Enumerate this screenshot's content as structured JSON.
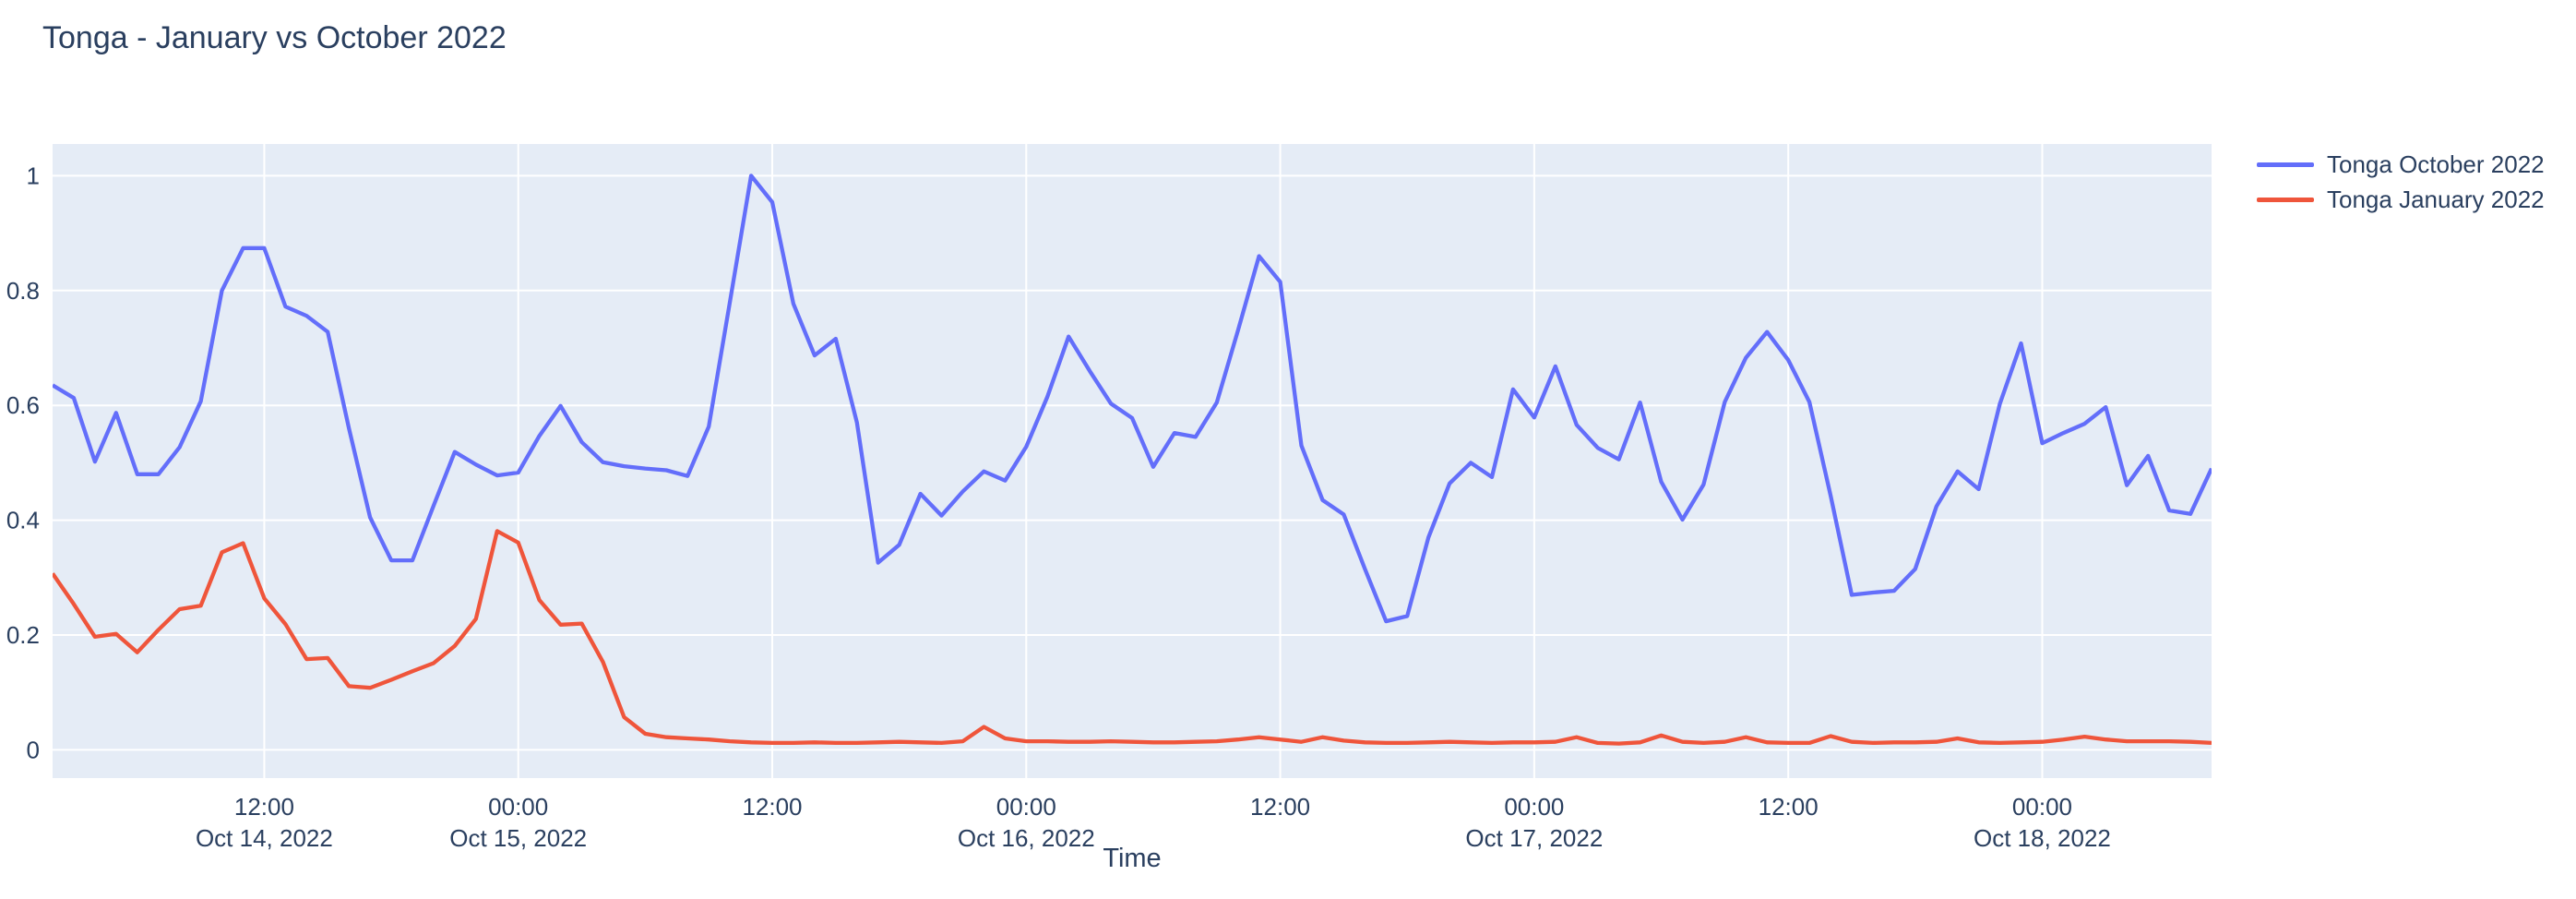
{
  "title": {
    "text": "Tonga - January vs October 2022",
    "color": "#2a3f5f"
  },
  "legend": {
    "items": [
      {
        "label": "Tonga October 2022",
        "color": "#636efa"
      },
      {
        "label": "Tonga January 2022",
        "color": "#ef553b"
      }
    ]
  },
  "chart_data": {
    "type": "line",
    "title": "Tonga - January vs October 2022",
    "xlabel": "Time",
    "ylabel": "",
    "plot_bgcolor": "#e5ecf6",
    "grid_color": "#ffffff",
    "text_color": "#2a3f5f",
    "legend_position": "top-right-outside",
    "x_axis": {
      "label": "Time",
      "start": "2022-10-14 02:00",
      "interval_hours": 1,
      "points": 103,
      "ticks": [
        {
          "hour_offset": 10,
          "line1": "12:00",
          "line2": "Oct 14, 2022"
        },
        {
          "hour_offset": 22,
          "line1": "00:00",
          "line2": "Oct 15, 2022"
        },
        {
          "hour_offset": 34,
          "line1": "12:00",
          "line2": ""
        },
        {
          "hour_offset": 46,
          "line1": "00:00",
          "line2": "Oct 16, 2022"
        },
        {
          "hour_offset": 58,
          "line1": "12:00",
          "line2": ""
        },
        {
          "hour_offset": 70,
          "line1": "00:00",
          "line2": "Oct 17, 2022"
        },
        {
          "hour_offset": 82,
          "line1": "12:00",
          "line2": ""
        },
        {
          "hour_offset": 94,
          "line1": "00:00",
          "line2": "Oct 18, 2022"
        }
      ]
    },
    "y_axis": {
      "range": [
        -0.0492,
        1.0553
      ],
      "ticks": [
        {
          "value": 0,
          "label": "0"
        },
        {
          "value": 0.2,
          "label": "0.2"
        },
        {
          "value": 0.4,
          "label": "0.4"
        },
        {
          "value": 0.6,
          "label": "0.6"
        },
        {
          "value": 0.8,
          "label": "0.8"
        },
        {
          "value": 1,
          "label": "1"
        }
      ]
    },
    "series": [
      {
        "name": "Tonga October 2022",
        "color": "#636efa",
        "values": [
          0.635,
          0.613,
          0.502,
          0.587,
          0.48,
          0.48,
          0.527,
          0.607,
          0.8,
          0.874,
          0.874,
          0.772,
          0.756,
          0.728,
          0.56,
          0.405,
          0.33,
          0.33,
          0.425,
          0.519,
          0.497,
          0.478,
          0.483,
          0.547,
          0.599,
          0.536,
          0.501,
          0.494,
          0.49,
          0.487,
          0.477,
          0.563,
          0.78,
          1.0,
          0.954,
          0.777,
          0.687,
          0.716,
          0.57,
          0.326,
          0.357,
          0.446,
          0.408,
          0.45,
          0.485,
          0.469,
          0.528,
          0.615,
          0.72,
          0.66,
          0.603,
          0.578,
          0.493,
          0.552,
          0.545,
          0.605,
          0.73,
          0.86,
          0.815,
          0.53,
          0.435,
          0.41,
          0.315,
          0.224,
          0.233,
          0.37,
          0.464,
          0.5,
          0.475,
          0.628,
          0.579,
          0.668,
          0.566,
          0.526,
          0.506,
          0.605,
          0.467,
          0.401,
          0.462,
          0.606,
          0.683,
          0.728,
          0.679,
          0.606,
          0.443,
          0.27,
          0.274,
          0.277,
          0.315,
          0.424,
          0.485,
          0.454,
          0.603,
          0.708,
          0.534,
          0.552,
          0.568,
          0.597,
          0.461,
          0.512,
          0.417,
          0.411,
          0.49
        ]
      },
      {
        "name": "Tonga January 2022",
        "color": "#ef553b",
        "values": [
          0.307,
          0.254,
          0.197,
          0.202,
          0.17,
          0.209,
          0.245,
          0.251,
          0.344,
          0.36,
          0.264,
          0.219,
          0.158,
          0.16,
          0.111,
          0.108,
          0.122,
          0.137,
          0.151,
          0.181,
          0.228,
          0.381,
          0.361,
          0.261,
          0.218,
          0.22,
          0.153,
          0.057,
          0.028,
          0.022,
          0.02,
          0.018,
          0.015,
          0.013,
          0.012,
          0.012,
          0.013,
          0.012,
          0.012,
          0.013,
          0.014,
          0.013,
          0.012,
          0.015,
          0.04,
          0.02,
          0.015,
          0.015,
          0.014,
          0.014,
          0.015,
          0.014,
          0.013,
          0.013,
          0.014,
          0.015,
          0.018,
          0.022,
          0.018,
          0.014,
          0.022,
          0.016,
          0.013,
          0.012,
          0.012,
          0.013,
          0.014,
          0.013,
          0.012,
          0.013,
          0.013,
          0.014,
          0.022,
          0.012,
          0.011,
          0.013,
          0.025,
          0.014,
          0.012,
          0.014,
          0.022,
          0.013,
          0.012,
          0.012,
          0.024,
          0.014,
          0.012,
          0.013,
          0.013,
          0.014,
          0.02,
          0.013,
          0.012,
          0.013,
          0.014,
          0.018,
          0.023,
          0.018,
          0.015,
          0.015,
          0.015,
          0.014,
          0.012
        ]
      }
    ]
  }
}
